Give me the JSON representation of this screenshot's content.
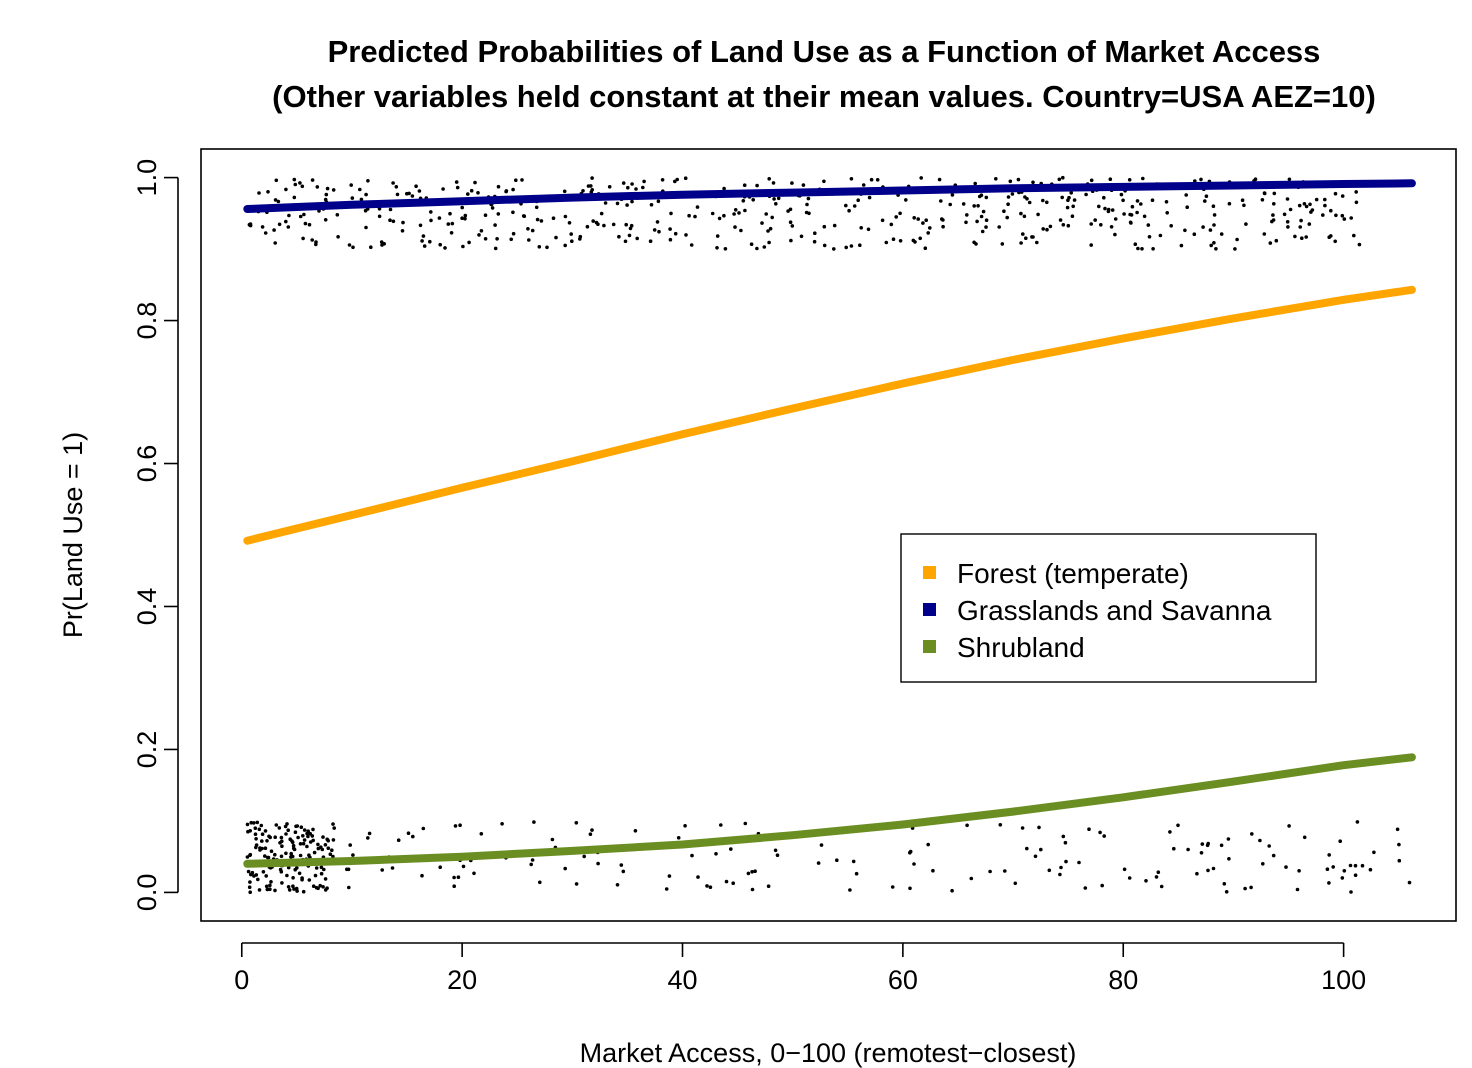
{
  "chart_data": {
    "type": "line",
    "title_lines": [
      "Predicted Probabilities of Land Use as a Function of Market Access",
      "(Other variables held constant at their mean values. Country=USA AEZ=10)"
    ],
    "xlabel": "Market Access, 0−100 (remotest−closest)",
    "ylabel": "Pr(Land Use = 1)",
    "xlim": [
      -3.7,
      110.2
    ],
    "ylim": [
      -0.04,
      1.04
    ],
    "x_ticks": [
      0,
      20,
      40,
      60,
      80,
      100
    ],
    "x_tick_labels": [
      "0",
      "20",
      "40",
      "60",
      "80",
      "100"
    ],
    "y_ticks": [
      0.0,
      0.2,
      0.4,
      0.6,
      0.8,
      1.0
    ],
    "y_tick_labels": [
      "0.0",
      "0.2",
      "0.4",
      "0.6",
      "0.8",
      "1.0"
    ],
    "grid": false,
    "legend_position": "center-right",
    "x": [
      0.5,
      10,
      20,
      30,
      40,
      50,
      60,
      70,
      80,
      90,
      100,
      106.2
    ],
    "series": [
      {
        "name": "Forest (temperate)",
        "color": "#FFA500",
        "values": [
          0.492,
          0.528,
          0.566,
          0.603,
          0.641,
          0.677,
          0.712,
          0.745,
          0.775,
          0.803,
          0.829,
          0.843
        ]
      },
      {
        "name": "Grasslands and Savanna",
        "color": "#00008B",
        "values": [
          0.956,
          0.962,
          0.967,
          0.972,
          0.976,
          0.979,
          0.982,
          0.985,
          0.987,
          0.989,
          0.991,
          0.992
        ]
      },
      {
        "name": "Shrubland",
        "color": "#6B8E23",
        "values": [
          0.04,
          0.044,
          0.05,
          0.058,
          0.067,
          0.08,
          0.095,
          0.113,
          0.133,
          0.155,
          0.178,
          0.189
        ]
      }
    ],
    "observations": {
      "description_of_points": "jittered observed land use (near 1 and near 0)",
      "jitter_band": 0.1,
      "groups": [
        {
          "level": 1,
          "count": 520,
          "x_range": [
            0.5,
            101.5
          ]
        },
        {
          "level": 0,
          "count": 330,
          "x_range": [
            0.5,
            106.2
          ]
        }
      ]
    }
  }
}
